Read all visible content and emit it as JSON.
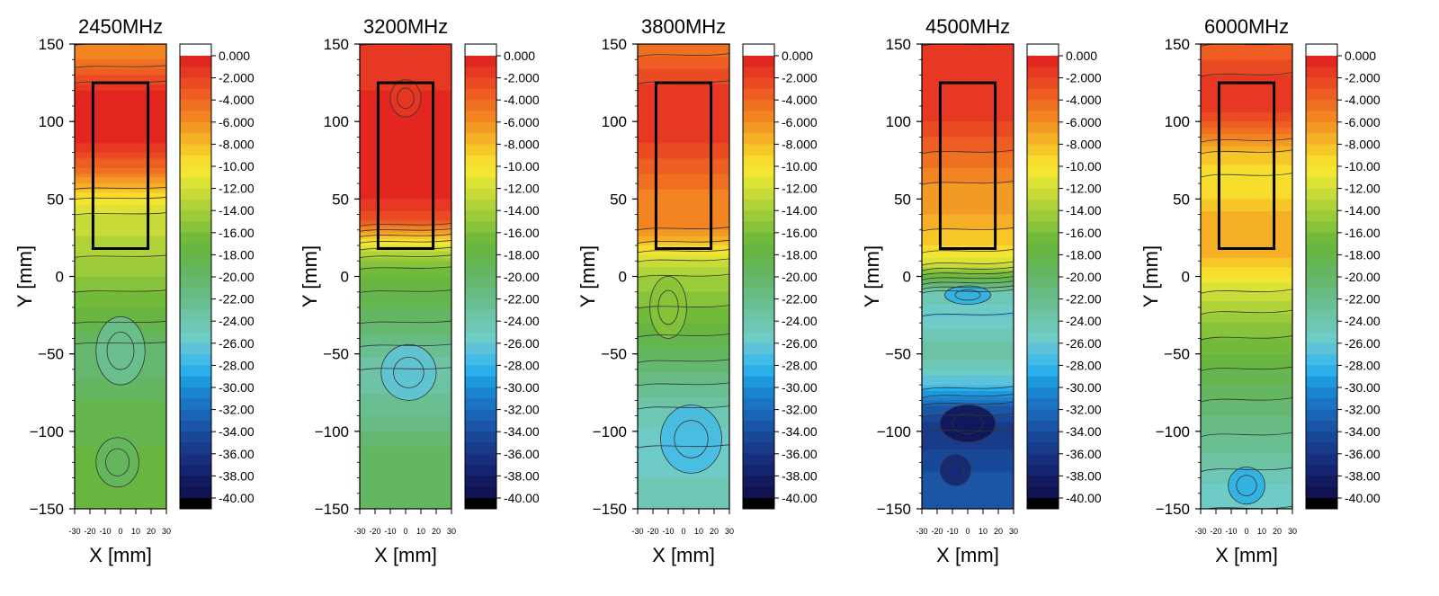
{
  "chart_data": {
    "type": "heatmap",
    "panels": [
      {
        "title": "2450MHz",
        "xlabel": "X [mm]",
        "ylabel": "Y [mm]",
        "xlim": [
          -30,
          30
        ],
        "ylim": [
          -150,
          150
        ],
        "x_ticks": [
          "-30",
          "-20",
          "-10",
          "0",
          "10",
          "20",
          "30"
        ],
        "y_ticks": [
          "150",
          "100",
          "50",
          "0",
          "−50",
          "−100",
          "−150"
        ],
        "y_tick_values": [
          150,
          100,
          50,
          0,
          -50,
          -100,
          -150
        ],
        "rect_x": [
          -18,
          18
        ],
        "rect_y": [
          18,
          125
        ],
        "profile": [
          {
            "y": 150,
            "v": -6
          },
          {
            "y": 140,
            "v": -5
          },
          {
            "y": 130,
            "v": -3
          },
          {
            "y": 120,
            "v": -1
          },
          {
            "y": 100,
            "v": -0.5
          },
          {
            "y": 85,
            "v": -1
          },
          {
            "y": 70,
            "v": -4
          },
          {
            "y": 60,
            "v": -7
          },
          {
            "y": 50,
            "v": -10
          },
          {
            "y": 40,
            "v": -12
          },
          {
            "y": 25,
            "v": -13
          },
          {
            "y": 0,
            "v": -15
          },
          {
            "y": -30,
            "v": -18
          },
          {
            "y": -50,
            "v": -21
          },
          {
            "y": -80,
            "v": -19
          },
          {
            "y": -110,
            "v": -18
          },
          {
            "y": -150,
            "v": -17
          }
        ],
        "features": [
          {
            "x": 0,
            "y": -48,
            "rx": 16,
            "ry": 22,
            "v": -22
          },
          {
            "x": -2,
            "y": -120,
            "rx": 14,
            "ry": 16,
            "v": -19
          }
        ]
      },
      {
        "title": "3200MHz",
        "xlabel": "X [mm]",
        "ylabel": "Y [mm]",
        "xlim": [
          -30,
          30
        ],
        "ylim": [
          -150,
          150
        ],
        "x_ticks": [
          "-30",
          "-20",
          "-10",
          "0",
          "10",
          "20",
          "30"
        ],
        "y_ticks": [
          "150",
          "100",
          "50",
          "0",
          "−50",
          "−100",
          "−150"
        ],
        "y_tick_values": [
          150,
          100,
          50,
          0,
          -50,
          -100,
          -150
        ],
        "rect_x": [
          -18,
          18
        ],
        "rect_y": [
          18,
          125
        ],
        "profile": [
          {
            "y": 150,
            "v": -2
          },
          {
            "y": 120,
            "v": -1
          },
          {
            "y": 80,
            "v": -0.5
          },
          {
            "y": 50,
            "v": -1
          },
          {
            "y": 35,
            "v": -3
          },
          {
            "y": 28,
            "v": -7
          },
          {
            "y": 20,
            "v": -11
          },
          {
            "y": 10,
            "v": -15
          },
          {
            "y": 0,
            "v": -17
          },
          {
            "y": -30,
            "v": -20
          },
          {
            "y": -60,
            "v": -24
          },
          {
            "y": -90,
            "v": -22
          },
          {
            "y": -120,
            "v": -19
          },
          {
            "y": -150,
            "v": -19
          }
        ],
        "features": [
          {
            "x": 2,
            "y": -62,
            "rx": 18,
            "ry": 18,
            "v": -26
          },
          {
            "x": 0,
            "y": 115,
            "rx": 10,
            "ry": 12,
            "v": -1.5
          }
        ]
      },
      {
        "title": "3800MHz",
        "xlabel": "X [mm]",
        "ylabel": "Y [mm]",
        "xlim": [
          -30,
          30
        ],
        "ylim": [
          -150,
          150
        ],
        "x_ticks": [
          "-30",
          "-20",
          "-10",
          "0",
          "10",
          "20",
          "30"
        ],
        "y_ticks": [
          "150",
          "100",
          "50",
          "0",
          "−50",
          "−100",
          "−150"
        ],
        "y_tick_values": [
          150,
          100,
          50,
          0,
          -50,
          -100,
          -150
        ],
        "rect_x": [
          -18,
          18
        ],
        "rect_y": [
          18,
          125
        ],
        "profile": [
          {
            "y": 150,
            "v": -5
          },
          {
            "y": 135,
            "v": -3
          },
          {
            "y": 115,
            "v": -1
          },
          {
            "y": 95,
            "v": -1
          },
          {
            "y": 75,
            "v": -3
          },
          {
            "y": 55,
            "v": -5
          },
          {
            "y": 35,
            "v": -5
          },
          {
            "y": 22,
            "v": -8
          },
          {
            "y": 10,
            "v": -12
          },
          {
            "y": 0,
            "v": -14
          },
          {
            "y": -30,
            "v": -17
          },
          {
            "y": -55,
            "v": -20
          },
          {
            "y": -85,
            "v": -24
          },
          {
            "y": -110,
            "v": -26
          },
          {
            "y": -130,
            "v": -25
          },
          {
            "y": -150,
            "v": -24
          }
        ],
        "features": [
          {
            "x": 5,
            "y": -105,
            "rx": 20,
            "ry": 22,
            "v": -27
          },
          {
            "x": -10,
            "y": -20,
            "rx": 12,
            "ry": 20,
            "v": -15
          }
        ]
      },
      {
        "title": "4500MHz",
        "xlabel": "X [mm]",
        "ylabel": "Y [mm]",
        "xlim": [
          -30,
          30
        ],
        "ylim": [
          -150,
          150
        ],
        "x_ticks": [
          "-30",
          "-20",
          "-10",
          "0",
          "10",
          "20",
          "30"
        ],
        "y_ticks": [
          "150",
          "100",
          "50",
          "0",
          "−50",
          "−100",
          "−150"
        ],
        "y_tick_values": [
          150,
          100,
          50,
          0,
          -50,
          -100,
          -150
        ],
        "rect_x": [
          -18,
          18
        ],
        "rect_y": [
          18,
          125
        ],
        "profile": [
          {
            "y": 150,
            "v": -2
          },
          {
            "y": 120,
            "v": -1
          },
          {
            "y": 100,
            "v": -2
          },
          {
            "y": 80,
            "v": -4
          },
          {
            "y": 60,
            "v": -6
          },
          {
            "y": 40,
            "v": -7
          },
          {
            "y": 20,
            "v": -9
          },
          {
            "y": 8,
            "v": -12
          },
          {
            "y": 0,
            "v": -17
          },
          {
            "y": -10,
            "v": -24
          },
          {
            "y": -25,
            "v": -26
          },
          {
            "y": -50,
            "v": -23
          },
          {
            "y": -70,
            "v": -27
          },
          {
            "y": -85,
            "v": -33
          },
          {
            "y": -100,
            "v": -36
          },
          {
            "y": -125,
            "v": -34
          },
          {
            "y": -150,
            "v": -33
          }
        ],
        "features": [
          {
            "x": 0,
            "y": -95,
            "rx": 18,
            "ry": 12,
            "v": -39
          },
          {
            "x": -8,
            "y": -125,
            "rx": 10,
            "ry": 10,
            "v": -37
          },
          {
            "x": 0,
            "y": -12,
            "rx": 15,
            "ry": 6,
            "v": -28
          }
        ]
      },
      {
        "title": "6000MHz",
        "xlabel": "X [mm]",
        "ylabel": "Y [mm]",
        "xlim": [
          -30,
          30
        ],
        "ylim": [
          -150,
          150
        ],
        "x_ticks": [
          "-30",
          "-20",
          "-10",
          "0",
          "10",
          "20",
          "30"
        ],
        "y_ticks": [
          "150",
          "100",
          "50",
          "0",
          "−50",
          "−100",
          "−150"
        ],
        "y_tick_values": [
          150,
          100,
          50,
          0,
          -50,
          -100,
          -150
        ],
        "rect_x": [
          -18,
          18
        ],
        "rect_y": [
          18,
          125
        ],
        "profile": [
          {
            "y": 150,
            "v": -4
          },
          {
            "y": 130,
            "v": -2
          },
          {
            "y": 110,
            "v": -1
          },
          {
            "y": 95,
            "v": -4
          },
          {
            "y": 80,
            "v": -8
          },
          {
            "y": 65,
            "v": -10
          },
          {
            "y": 50,
            "v": -9
          },
          {
            "y": 35,
            "v": -7
          },
          {
            "y": 20,
            "v": -7
          },
          {
            "y": 5,
            "v": -9
          },
          {
            "y": -10,
            "v": -12
          },
          {
            "y": -30,
            "v": -15
          },
          {
            "y": -60,
            "v": -18
          },
          {
            "y": -90,
            "v": -21
          },
          {
            "y": -115,
            "v": -23
          },
          {
            "y": -135,
            "v": -25
          },
          {
            "y": -150,
            "v": -26
          }
        ],
        "features": [
          {
            "x": 0,
            "y": -135,
            "rx": 12,
            "ry": 12,
            "v": -28
          }
        ]
      }
    ],
    "colorbar": {
      "labels": [
        "0.000",
        "-2.000",
        "-4.000",
        "-6.000",
        "-8.000",
        "-10.00",
        "-12.00",
        "-14.00",
        "-16.00",
        "-18.00",
        "-20.00",
        "-22.00",
        "-24.00",
        "-26.00",
        "-28.00",
        "-30.00",
        "-32.00",
        "-34.00",
        "-36.00",
        "-38.00",
        "-40.00"
      ],
      "levels": [
        0,
        -2,
        -4,
        -6,
        -8,
        -10,
        -12,
        -14,
        -16,
        -18,
        -20,
        -22,
        -24,
        -26,
        -28,
        -30,
        -32,
        -34,
        -36,
        -38,
        -40
      ],
      "top_color": "#ffffff",
      "bottom_color": "#000000",
      "colors": [
        "#e42620",
        "#e63822",
        "#ea4b22",
        "#ee5e22",
        "#f07022",
        "#f28422",
        "#f39a24",
        "#f6b026",
        "#f7c628",
        "#f8dc2c",
        "#f2e630",
        "#dde236",
        "#c8db38",
        "#b1d33a",
        "#9ccb3a",
        "#86c33a",
        "#72bb3a",
        "#68b640",
        "#66b650",
        "#65b660",
        "#66b870",
        "#68bb82",
        "#6abf92",
        "#6dc3a4",
        "#6ec7b4",
        "#6ecbc6",
        "#5ec3d8",
        "#44bbe6",
        "#2aafe8",
        "#1d98dc",
        "#1b84d0",
        "#1c73c2",
        "#1b63b4",
        "#1a55a6",
        "#194898",
        "#183b8a",
        "#172f7c",
        "#15246e",
        "#131a60",
        "#101252"
      ]
    }
  }
}
